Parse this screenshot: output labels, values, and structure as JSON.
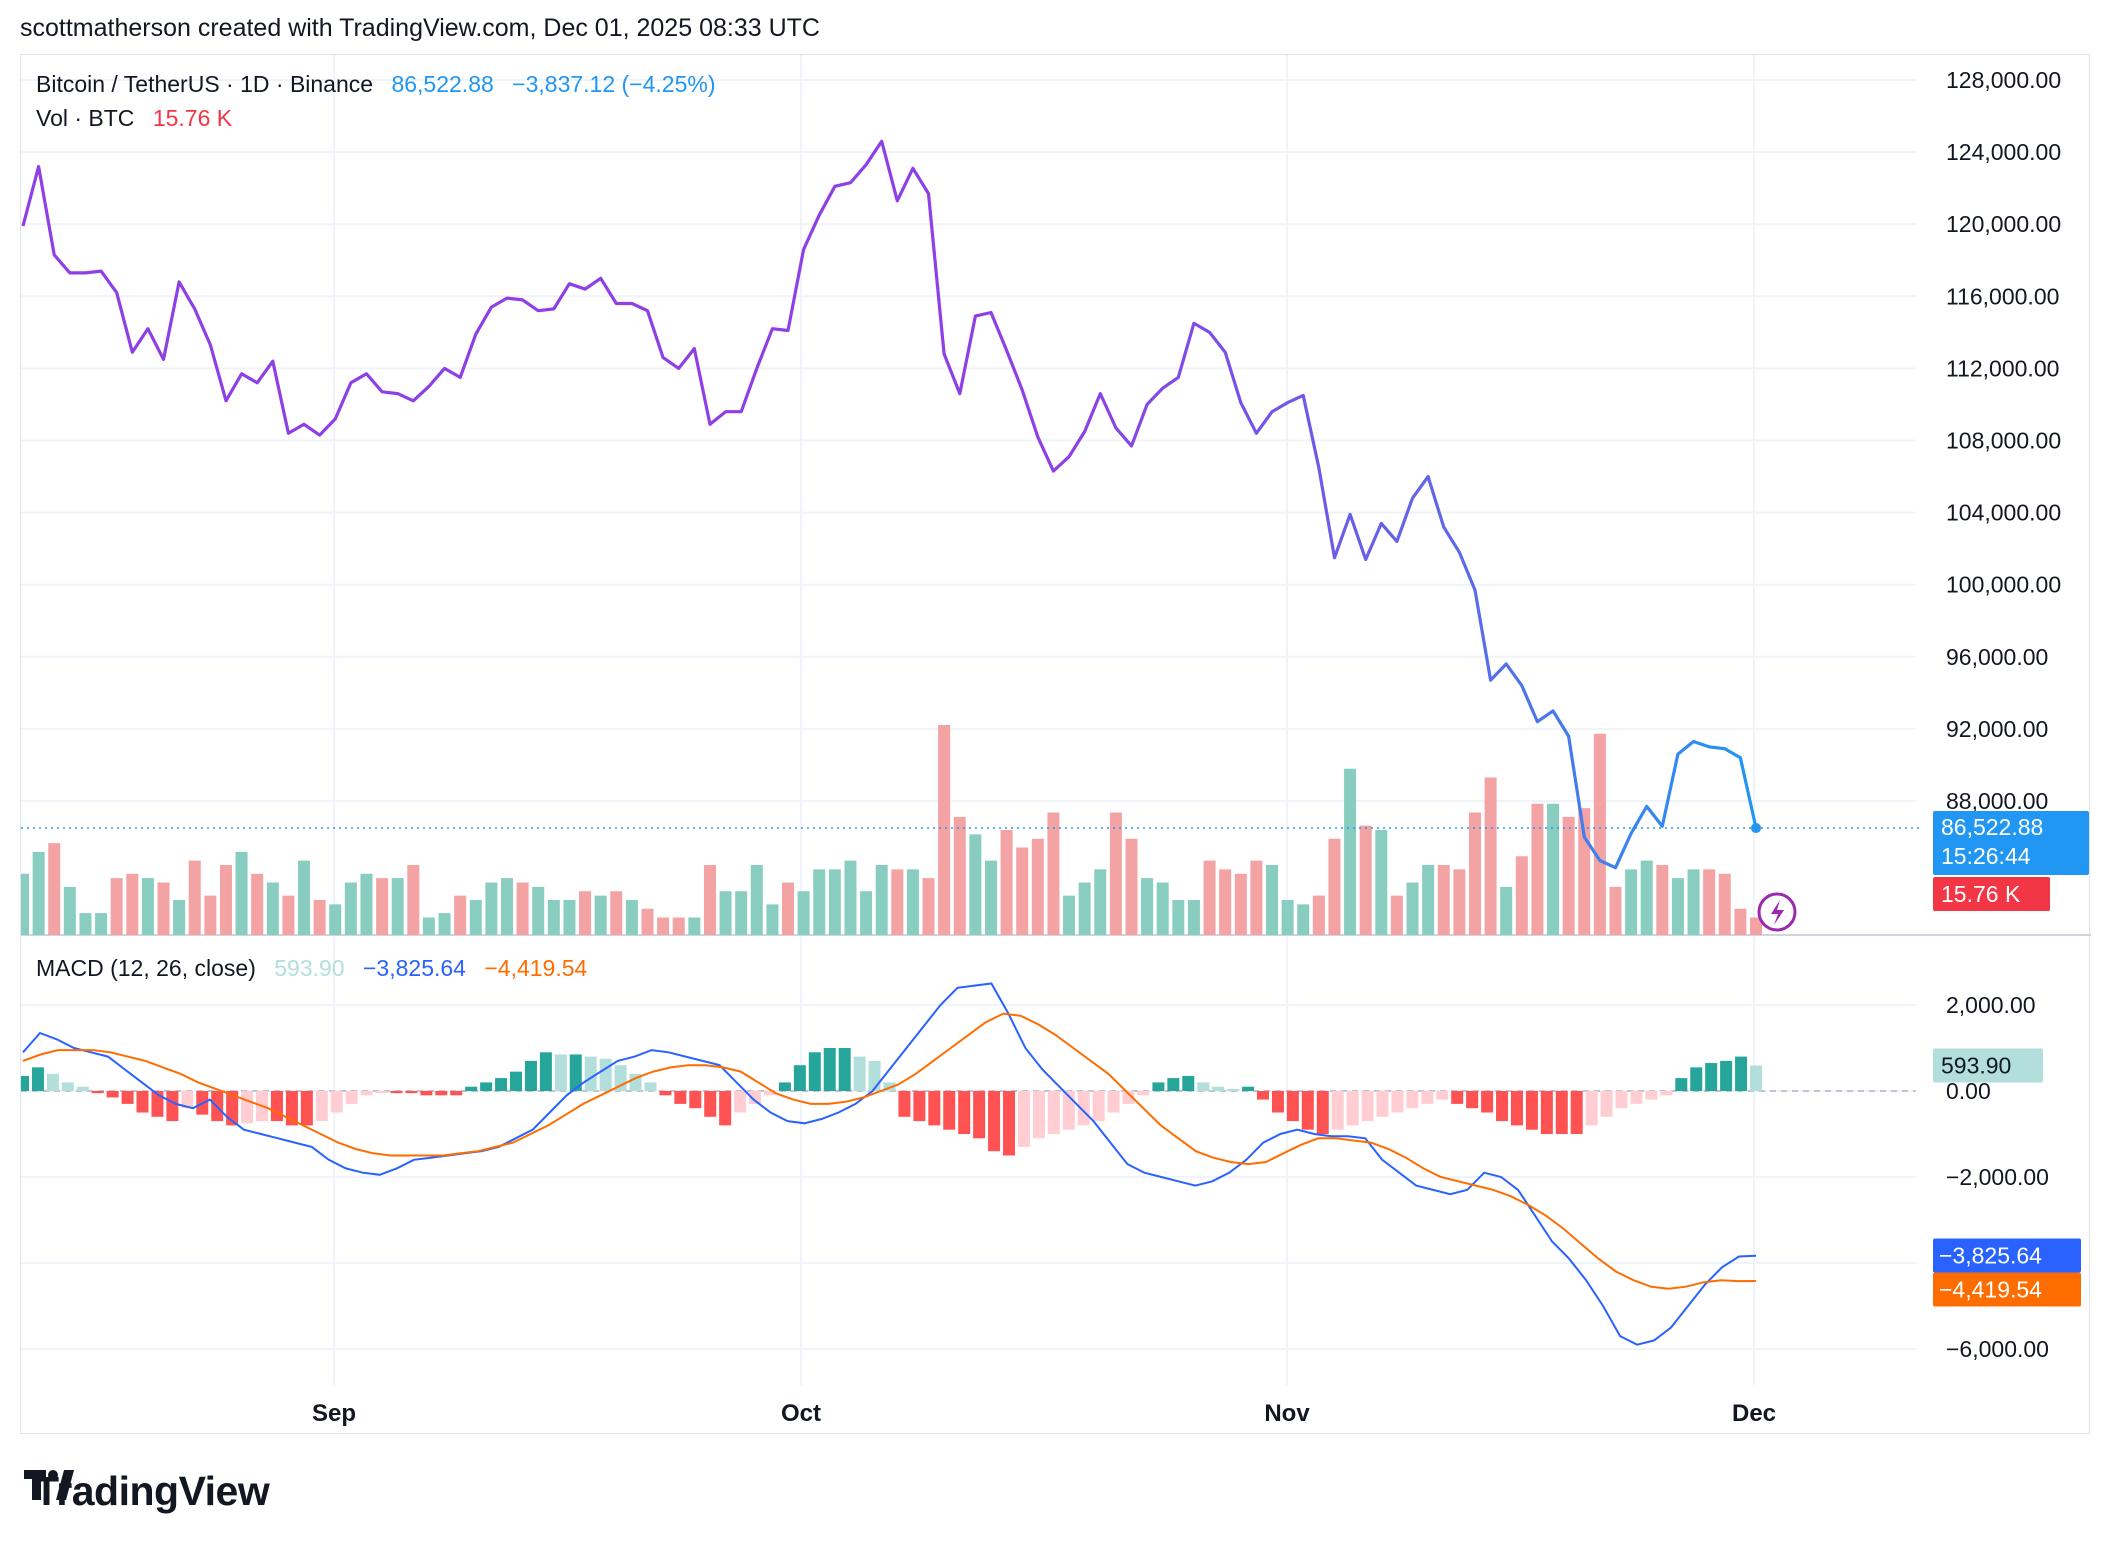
{
  "header": {
    "text": "scottmatherson created with TradingView.com, Dec 01, 2025 08:33 UTC"
  },
  "legend": {
    "symbol": "Bitcoin / TetherUS · 1D · Binance",
    "price": "86,522.88",
    "change": "−3,837.12 (−4.25%)",
    "vol_label": "Vol · BTC",
    "vol_value": "15.76 K",
    "macd_label": "MACD (12, 26, close)",
    "macd_hist": "593.90",
    "macd_line": "−3,825.64",
    "macd_signal": "−4,419.54"
  },
  "axis": {
    "price_ticks": [
      "128,000.00",
      "124,000.00",
      "120,000.00",
      "116,000.00",
      "112,000.00",
      "108,000.00",
      "104,000.00",
      "100,000.00",
      "96,000.00",
      "92,000.00",
      "88,000.00"
    ],
    "macd_ticks": [
      "2,000.00",
      "0.00",
      "−2,000.00",
      "−6,000.00"
    ],
    "x_ticks": [
      "Sep",
      "Oct",
      "Nov",
      "Dec"
    ]
  },
  "badges": {
    "price": "86,522.88",
    "countdown": "15:26:44",
    "volume": "15.76 K",
    "hist": "593.90",
    "macd": "−3,825.64",
    "signal": "−4,419.54"
  },
  "logo": {
    "text": "TradingView"
  },
  "colors": {
    "price_line_start": "#8e3fe6",
    "price_line_end": "#2196f3",
    "vol_up": "#89cdc0",
    "vol_down": "#f3a3a3",
    "macd_line": "#2962ff",
    "signal_line": "#ff6d00",
    "hist_up_strong": "#26a69a",
    "hist_up_weak": "#b2dfdb",
    "hist_down_strong": "#ff5252",
    "hist_down_weak": "#ffcdd2",
    "price_badge": "#2196f3",
    "volume_badge": "#f23645"
  },
  "chart_data": [
    {
      "type": "line",
      "name_printed": "Bitcoin / TetherUS · 1D · Binance",
      "x_ticks": [
        "Sep",
        "Oct",
        "Nov",
        "Dec"
      ],
      "ylim": [
        84000,
        129000
      ],
      "x_start_index": 0,
      "dates_note_free": true,
      "values": [
        119900,
        123200,
        118300,
        117300,
        117300,
        117400,
        116200,
        112900,
        114200,
        112500,
        116800,
        115300,
        113300,
        110200,
        111700,
        111200,
        112400,
        108400,
        108900,
        108300,
        109200,
        111200,
        111700,
        110700,
        110600,
        110200,
        111000,
        112000,
        111500,
        113900,
        115400,
        115900,
        115800,
        115200,
        115300,
        116700,
        116400,
        117000,
        115600,
        115600,
        115200,
        112600,
        112000,
        113100,
        108900,
        109600,
        109600,
        112000,
        114200,
        114100,
        118600,
        120500,
        122100,
        122300,
        123300,
        124600,
        121300,
        123100,
        121700,
        112800,
        110600,
        114900,
        115100,
        113000,
        110800,
        108200,
        106300,
        107100,
        108500,
        110600,
        108700,
        107700,
        110000,
        110900,
        111500,
        114500,
        114000,
        112900,
        110100,
        108400,
        109600,
        110100,
        110500,
        106500,
        101500,
        103900,
        101400,
        103400,
        102400,
        104800,
        106000,
        103200,
        101800,
        99700,
        94700,
        95600,
        94400,
        92400,
        93000,
        91600,
        86000,
        84700,
        84300,
        86200,
        87700,
        86600,
        90600,
        91300,
        91000,
        90900,
        90400,
        86500
      ]
    },
    {
      "type": "bar",
      "name_printed": "Vol · BTC",
      "ylim": [
        0,
        60
      ],
      "values": [
        14,
        19,
        21,
        11,
        5,
        5,
        13,
        14,
        13,
        12,
        8,
        17,
        9,
        16,
        19,
        14,
        12,
        9,
        17,
        8,
        7,
        12,
        14,
        13,
        13,
        16,
        4,
        5,
        9,
        8,
        12,
        13,
        12,
        11,
        8,
        8,
        10,
        9,
        10,
        8,
        6,
        4,
        4,
        4,
        16,
        10,
        10,
        16,
        7,
        12,
        10,
        15,
        15,
        17,
        10,
        16,
        15,
        15,
        13,
        48,
        27,
        23,
        17,
        24,
        20,
        22,
        28,
        9,
        12,
        15,
        28,
        22,
        13,
        12,
        8,
        8,
        17,
        15,
        14,
        17,
        16,
        8,
        7,
        9,
        22,
        38,
        25,
        24,
        9,
        12,
        16,
        16,
        15,
        28,
        36,
        11,
        18,
        30,
        30,
        27,
        29,
        46,
        11,
        15,
        17,
        16,
        13,
        15,
        15,
        14,
        6,
        4
      ],
      "up": [
        1,
        1,
        0,
        1,
        1,
        1,
        0,
        0,
        1,
        0,
        1,
        0,
        0,
        0,
        1,
        0,
        1,
        0,
        1,
        0,
        1,
        1,
        1,
        0,
        1,
        0,
        1,
        1,
        0,
        1,
        1,
        1,
        0,
        1,
        1,
        1,
        0,
        1,
        0,
        1,
        0,
        0,
        0,
        1,
        0,
        1,
        1,
        1,
        1,
        0,
        1,
        1,
        1,
        1,
        1,
        1,
        0,
        1,
        0,
        0,
        0,
        1,
        1,
        0,
        0,
        0,
        0,
        1,
        1,
        1,
        0,
        0,
        1,
        1,
        1,
        1,
        0,
        0,
        0,
        0,
        1,
        1,
        1,
        0,
        0,
        1,
        0,
        1,
        0,
        1,
        1,
        0,
        0,
        0,
        0,
        1,
        0,
        0,
        1,
        0,
        0,
        0,
        0,
        1,
        1,
        0,
        1,
        1,
        0,
        0,
        0,
        0
      ]
    },
    {
      "type": "line",
      "name_printed": "MACD (12, 26, close)",
      "ylim": [
        -6300,
        2700
      ],
      "macd": [
        900,
        1350,
        1200,
        1000,
        900,
        800,
        500,
        200,
        -100,
        -300,
        -400,
        -200,
        -600,
        -900,
        -1000,
        -1100,
        -1200,
        -1300,
        -1600,
        -1800,
        -1900,
        -1950,
        -1800,
        -1600,
        -1550,
        -1500,
        -1450,
        -1400,
        -1300,
        -1100,
        -900,
        -500,
        -100,
        200,
        450,
        700,
        800,
        950,
        900,
        800,
        700,
        600,
        200,
        -200,
        -500,
        -700,
        -750,
        -650,
        -500,
        -300,
        0,
        500,
        1000,
        1500,
        2000,
        2400,
        2450,
        2500,
        1800,
        1000,
        500,
        100,
        -300,
        -700,
        -1200,
        -1700,
        -1900,
        -2000,
        -2100,
        -2200,
        -2100,
        -1900,
        -1600,
        -1200,
        -1000,
        -900,
        -1000,
        -1050,
        -1050,
        -1100,
        -1600,
        -1900,
        -2200,
        -2300,
        -2400,
        -2300,
        -1900,
        -2000,
        -2300,
        -2900,
        -3500,
        -3900,
        -4400,
        -5000,
        -5700,
        -5900,
        -5800,
        -5500,
        -5000,
        -4500,
        -4100,
        -3850,
        -3830
      ]
    },
    {
      "type": "line",
      "name_printed": "",
      "signal": [
        700,
        850,
        950,
        950,
        950,
        900,
        800,
        700,
        550,
        400,
        200,
        50,
        -100,
        -250,
        -400,
        -600,
        -800,
        -1000,
        -1200,
        -1350,
        -1450,
        -1500,
        -1500,
        -1500,
        -1500,
        -1450,
        -1400,
        -1300,
        -1200,
        -1000,
        -800,
        -550,
        -300,
        -100,
        100,
        300,
        450,
        550,
        600,
        600,
        550,
        450,
        200,
        -50,
        -200,
        -300,
        -300,
        -250,
        -150,
        0,
        150,
        400,
        700,
        1000,
        1300,
        1600,
        1800,
        1750,
        1550,
        1300,
        1000,
        700,
        400,
        0,
        -400,
        -800,
        -1100,
        -1400,
        -1550,
        -1650,
        -1700,
        -1650,
        -1450,
        -1250,
        -1100,
        -1100,
        -1150,
        -1200,
        -1350,
        -1550,
        -1800,
        -2000,
        -2100,
        -2200,
        -2300,
        -2450,
        -2650,
        -2900,
        -3200,
        -3550,
        -3900,
        -4200,
        -4400,
        -4550,
        -4600,
        -4550,
        -4450,
        -4400,
        -4420,
        -4419
      ]
    },
    {
      "type": "bar",
      "name_printed": "",
      "hist": [
        350,
        550,
        400,
        200,
        100,
        -50,
        -150,
        -300,
        -500,
        -600,
        -700,
        -400,
        -550,
        -700,
        -800,
        -750,
        -700,
        -700,
        -800,
        -800,
        -700,
        -500,
        -300,
        -100,
        -50,
        -50,
        -50,
        -100,
        -100,
        -100,
        100,
        200,
        300,
        450,
        700,
        900,
        850,
        850,
        800,
        750,
        600,
        400,
        200,
        -100,
        -300,
        -400,
        -600,
        -800,
        -500,
        -300,
        -100,
        200,
        600,
        900,
        1000,
        1000,
        800,
        700,
        200,
        -600,
        -700,
        -800,
        -900,
        -1000,
        -1100,
        -1400,
        -1500,
        -1300,
        -1100,
        -1000,
        -900,
        -800,
        -700,
        -500,
        -300,
        -100,
        200,
        300,
        350,
        200,
        100,
        50,
        100,
        -200,
        -500,
        -700,
        -900,
        -1000,
        -900,
        -800,
        -700,
        -600,
        -500,
        -400,
        -300,
        -200,
        -300,
        -400,
        -500,
        -700,
        -800,
        -900,
        -1000,
        -1000,
        -1000,
        -800,
        -600,
        -400,
        -300,
        -200,
        -100,
        300,
        550,
        650,
        700,
        800,
        594
      ],
      "shade": []
    }
  ]
}
